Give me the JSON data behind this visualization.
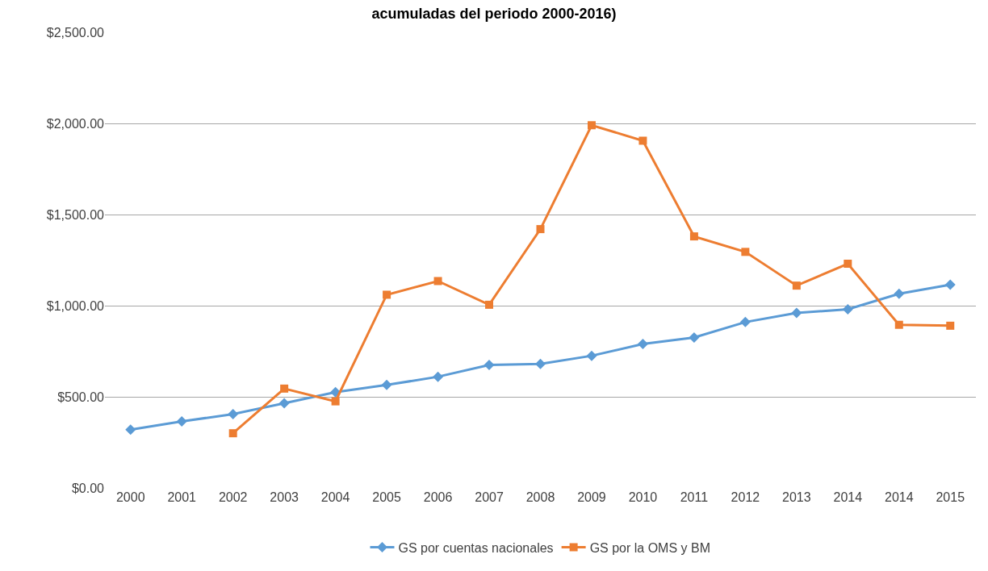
{
  "chart_data": {
    "type": "line",
    "title": "acumuladas del periodo 2000-2016)",
    "categories": [
      "2000",
      "2001",
      "2002",
      "2003",
      "2004",
      "2005",
      "2006",
      "2007",
      "2008",
      "2009",
      "2010",
      "2011",
      "2012",
      "2013",
      "2014",
      "2014",
      "2015"
    ],
    "series": [
      {
        "name": "GS por cuentas nacionales",
        "color": "#5b9bd5",
        "marker": "diamond",
        "values": [
          320,
          365,
          405,
          465,
          525,
          565,
          610,
          675,
          680,
          725,
          790,
          825,
          910,
          960,
          980,
          1065,
          1115
        ]
      },
      {
        "name": "GS por la OMS y BM",
        "color": "#ed7d31",
        "marker": "square",
        "values": [
          null,
          null,
          300,
          545,
          475,
          1060,
          1135,
          1005,
          1420,
          1990,
          1905,
          1380,
          1295,
          1110,
          1230,
          895,
          890
        ]
      }
    ],
    "ylim": [
      0,
      2500
    ],
    "yticks": [
      {
        "value": 0,
        "label": "$0.00"
      },
      {
        "value": 500,
        "label": "$500.00"
      },
      {
        "value": 1000,
        "label": "$1,000.00"
      },
      {
        "value": 1500,
        "label": "$1,500.00"
      },
      {
        "value": 2000,
        "label": "$2,000.00"
      },
      {
        "value": 2500,
        "label": "$2,500.00"
      }
    ],
    "grid": "y",
    "legend": "bottom",
    "line_style": "solid"
  }
}
